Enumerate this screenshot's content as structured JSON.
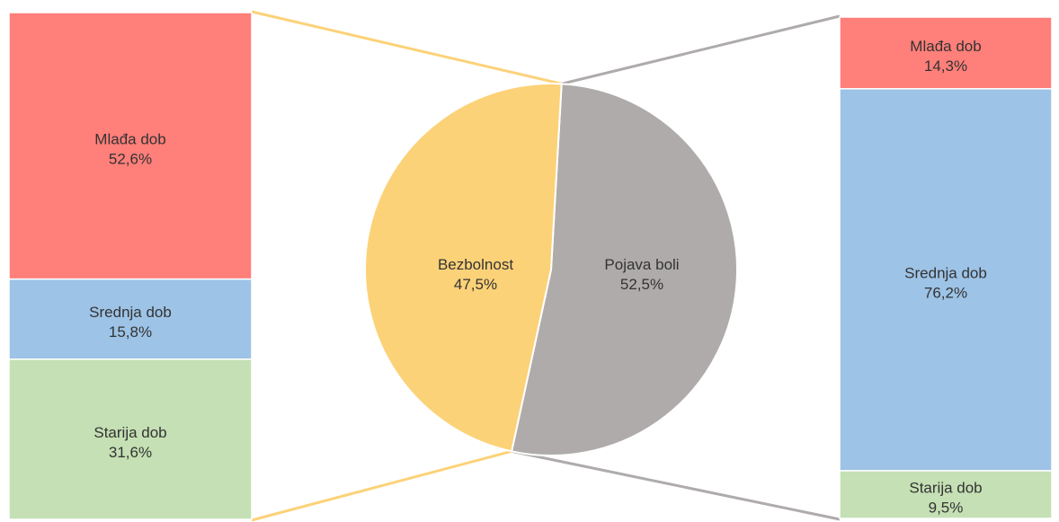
{
  "chart_data": {
    "type": "pie",
    "title": "",
    "pie": {
      "slices": [
        {
          "label": "Bezbolnost",
          "value": 47.5,
          "value_text": "47,5%",
          "color": "#FCD278"
        },
        {
          "label": "Pojava boli",
          "value": 52.5,
          "value_text": "52,5%",
          "color": "#AFABAB"
        }
      ]
    },
    "left_bar": {
      "parent": "Bezbolnost",
      "connector_color": "#FCD278",
      "segments": [
        {
          "label": "Mlađa dob",
          "value": 52.6,
          "value_text": "52,6%",
          "color": "#FF7F7A"
        },
        {
          "label": "Srednja dob",
          "value": 15.8,
          "value_text": "15,8%",
          "color": "#9DC3E6"
        },
        {
          "label": "Starija dob",
          "value": 31.6,
          "value_text": "31,6%",
          "color": "#C5E0B4"
        }
      ]
    },
    "right_bar": {
      "parent": "Pojava boli",
      "connector_color": "#AFABAB",
      "segments": [
        {
          "label": "Mlađa dob",
          "value": 14.3,
          "value_text": "14,3%",
          "color": "#FF7F7A"
        },
        {
          "label": "Srednja dob",
          "value": 76.2,
          "value_text": "76,2%",
          "color": "#9DC3E6"
        },
        {
          "label": "Starija dob",
          "value": 9.5,
          "value_text": "9,5%",
          "color": "#C5E0B4"
        }
      ]
    }
  }
}
